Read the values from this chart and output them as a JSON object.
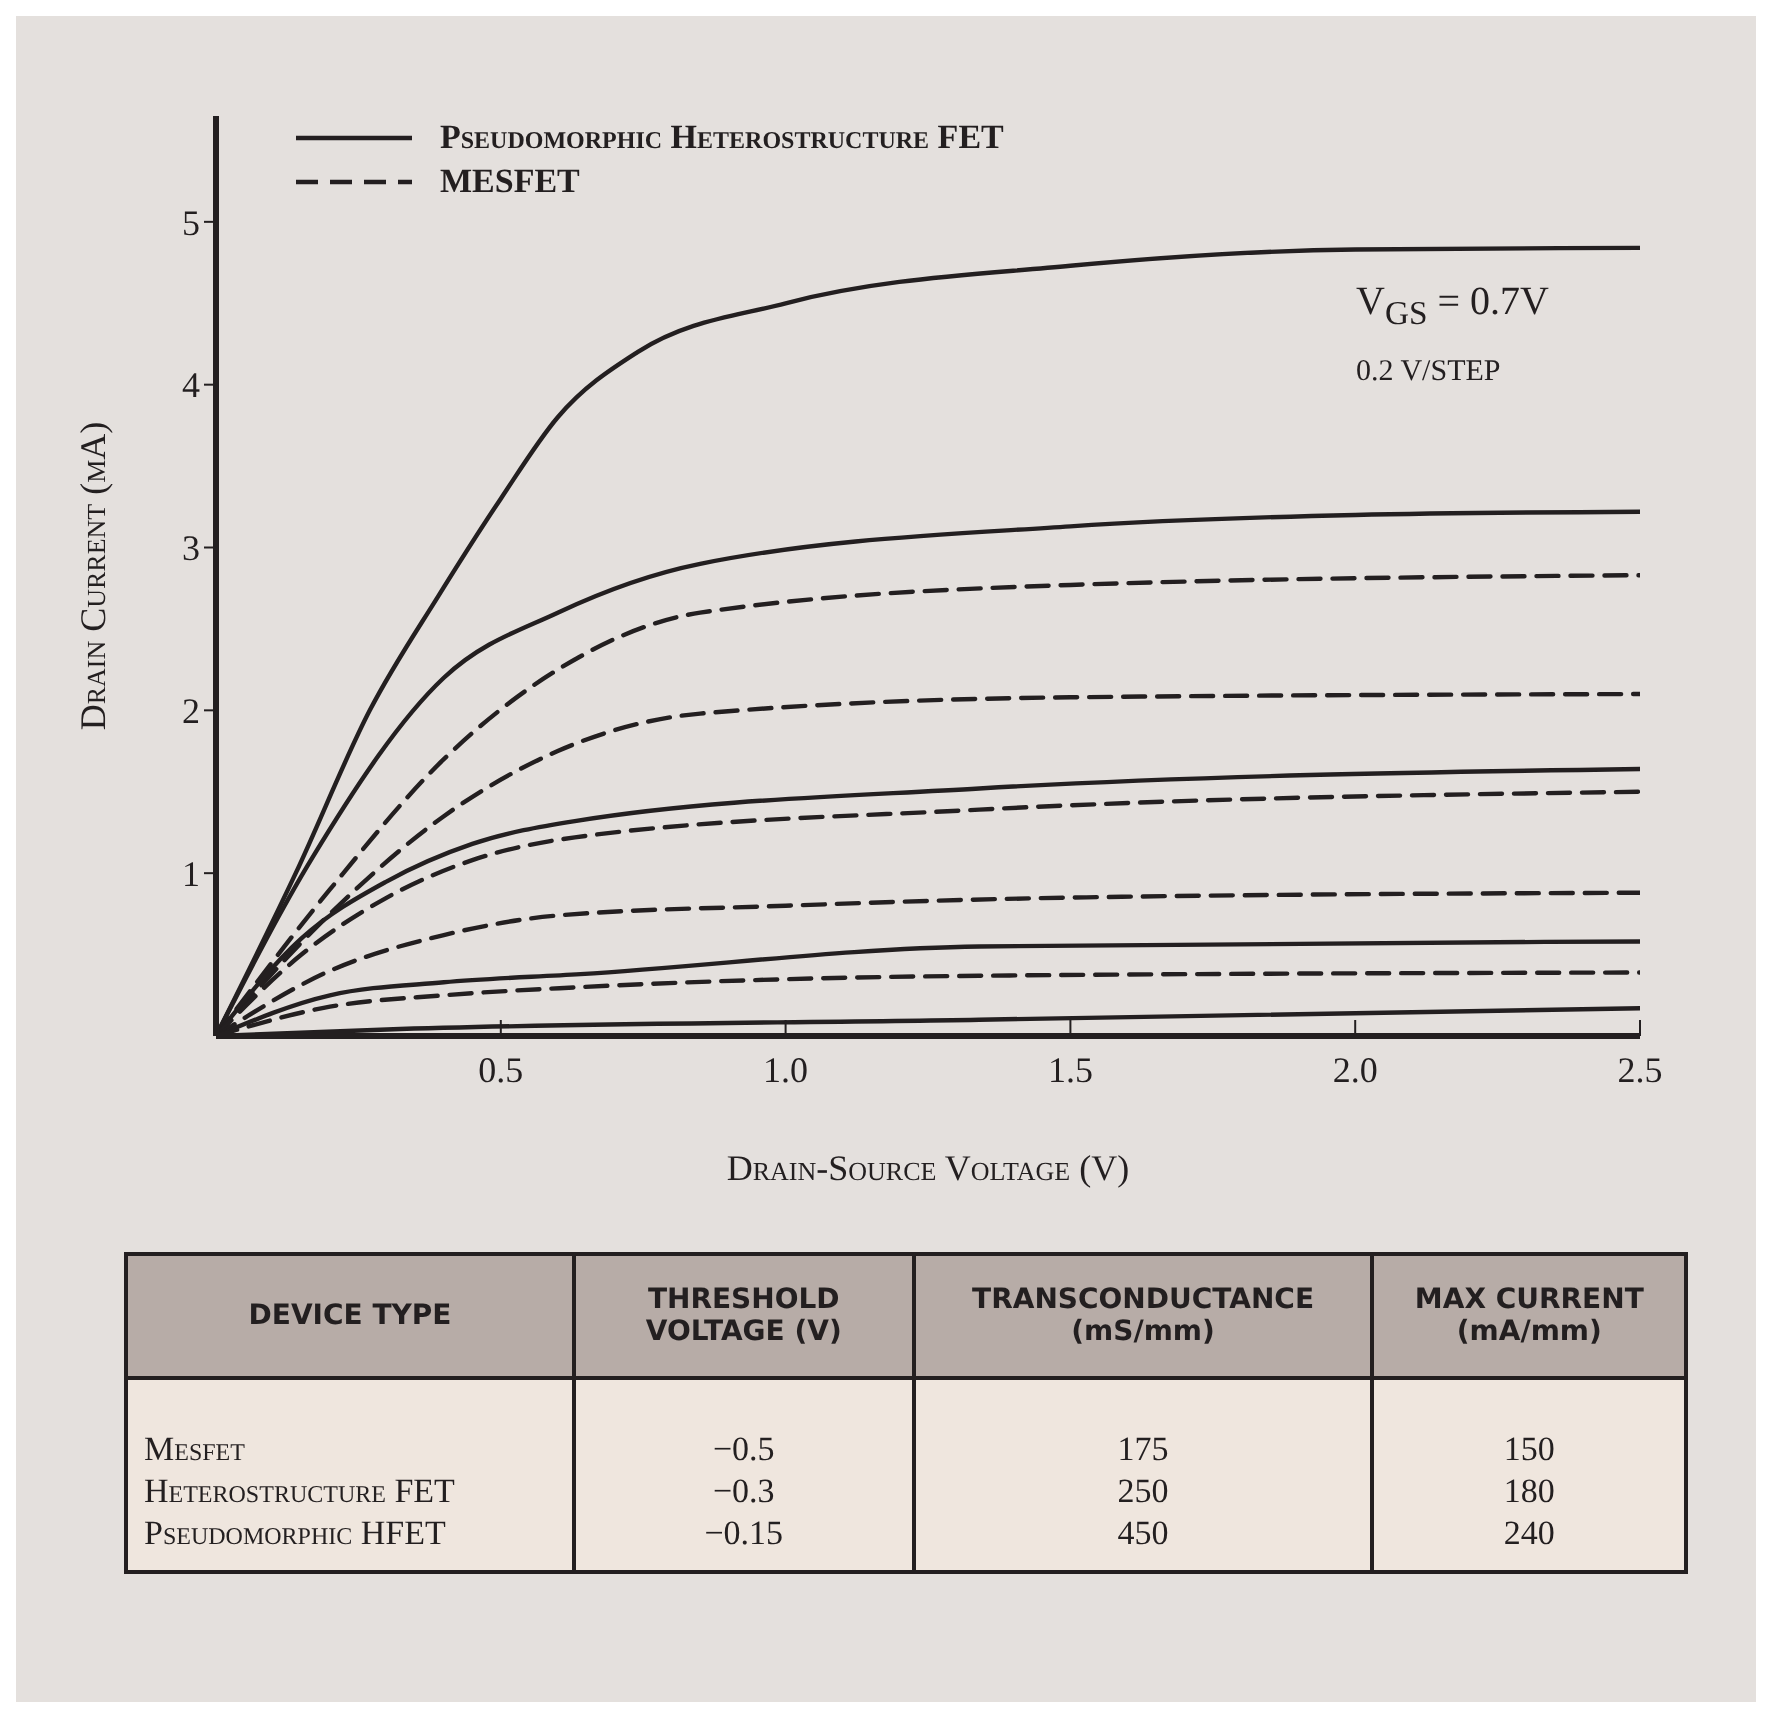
{
  "chart_data": [
    {
      "type": "line",
      "xlabel": "Drain-Source Voltage (V)",
      "ylabel": "Drain Current (mA)",
      "xlim": [
        0,
        2.5
      ],
      "ylim": [
        0,
        5.65
      ],
      "xticks": [
        0.5,
        {
          "value": 1,
          "label": "1.0"
        },
        1.5,
        {
          "value": 2,
          "label": "2.0"
        },
        2.5
      ],
      "yticks": [
        1,
        2,
        3,
        4,
        5
      ],
      "legend": "top left",
      "marker": "none",
      "annotations": [
        "V$_{GS}$ = 0.7V",
        "0.2 V/STEP"
      ],
      "series": [
        {
          "name": "Pseudomorphic Heterostructure FET",
          "color": "#231f20",
          "line_style": "solid",
          "x": [
            0,
            0.14,
            0.27,
            0.39,
            0.5,
            0.6,
            0.74,
            1.0,
            1.5,
            2.0,
            2.5
          ],
          "values": [
            0,
            1.0,
            2.0,
            2.7,
            3.3,
            3.8,
            4.2,
            4.5,
            4.73,
            4.83,
            4.84
          ]
        },
        {
          "color": "#231f20",
          "line_style": "solid",
          "x": [
            0,
            0.17,
            0.4,
            0.6,
            0.85,
            1.5,
            2.0,
            2.5
          ],
          "values": [
            0,
            1.1,
            2.2,
            2.6,
            2.9,
            3.13,
            3.2,
            3.22
          ]
        },
        {
          "name": "MESFET",
          "color": "#231f20",
          "line_style": "dashed",
          "x": [
            0,
            0.2,
            0.4,
            0.6,
            0.85,
            1.5,
            2.5
          ],
          "values": [
            0,
            0.9,
            1.7,
            2.25,
            2.6,
            2.77,
            2.83
          ]
        },
        {
          "color": "#231f20",
          "line_style": "dashed",
          "x": [
            0,
            0.2,
            0.4,
            0.6,
            0.85,
            1.5,
            2.5
          ],
          "values": [
            0,
            0.75,
            1.35,
            1.75,
            1.98,
            2.08,
            2.1
          ]
        },
        {
          "color": "#231f20",
          "line_style": "solid",
          "x": [
            0,
            0.15,
            0.3,
            0.45,
            0.63,
            1.34,
            2.5
          ],
          "values": [
            0,
            0.6,
            0.95,
            1.18,
            1.32,
            1.52,
            1.64
          ]
        },
        {
          "color": "#231f20",
          "line_style": "dashed",
          "x": [
            0,
            0.15,
            0.3,
            0.45,
            0.63,
            1.34,
            2.5
          ],
          "values": [
            0,
            0.5,
            0.85,
            1.08,
            1.22,
            1.39,
            1.5
          ]
        },
        {
          "color": "#231f20",
          "line_style": "dashed",
          "x": [
            0,
            0.2,
            0.4,
            0.6,
            1.0,
            1.5,
            2.5
          ],
          "values": [
            0,
            0.4,
            0.62,
            0.74,
            0.8,
            0.85,
            0.88
          ]
        },
        {
          "color": "#231f20",
          "line_style": "solid",
          "x": [
            0,
            0.2,
            0.4,
            0.64,
            1.34,
            2.5
          ],
          "values": [
            0,
            0.25,
            0.33,
            0.38,
            0.55,
            0.58
          ]
        },
        {
          "color": "#231f20",
          "line_style": "dashed",
          "x": [
            0,
            0.2,
            0.4,
            0.64,
            1.34,
            2.5
          ],
          "values": [
            0,
            0.18,
            0.25,
            0.3,
            0.37,
            0.39
          ]
        },
        {
          "color": "#231f20",
          "line_style": "solid",
          "x": [
            0,
            0.3,
            1.34,
            2.5
          ],
          "values": [
            0,
            0.04,
            0.1,
            0.17
          ]
        }
      ]
    },
    {
      "type": "other",
      "ylabel": "DEVICE TYPE",
      "categories": [
        "THRESHOLD VOLTAGE (V)",
        "TRANSCONDUCTANCE (mS/mm)",
        "MAX CURRENT (mA/mm)"
      ],
      "y_categories": [
        "Mesfet",
        "Heterostructure FET",
        "Pseudomorphic HFET"
      ],
      "annotations": [
        "−0.5",
        "175",
        "150",
        "−0.3",
        "250",
        "180",
        "−0.15",
        "450",
        "240"
      ]
    }
  ]
}
